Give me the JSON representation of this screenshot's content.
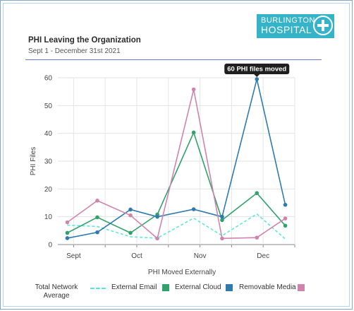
{
  "header": {
    "title": "PHI Leaving the Organization",
    "subtitle": "Sept 1 - December 31st 2021"
  },
  "logo": {
    "line1": "BURLINGTON",
    "line2": "HOSPITAL",
    "icon": "medical-cross-icon",
    "color": "#35b3c9"
  },
  "chart_data": {
    "type": "line",
    "xlabel": "PHI Moved Externally",
    "ylabel": "PHI Files",
    "ylim": [
      0,
      60
    ],
    "yticks": [
      0,
      10,
      20,
      30,
      40,
      50,
      60
    ],
    "x_tick_labels": [
      "Sept",
      "Oct",
      "Nov",
      "Dec"
    ],
    "x_tick_positions": [
      1,
      3,
      5,
      7
    ],
    "x": [
      0.8,
      1.75,
      2.8,
      3.65,
      4.8,
      5.7,
      6.8,
      7.7
    ],
    "xlim": [
      0.5,
      8.0
    ],
    "grid": true,
    "series": [
      {
        "name": "Total Network Average",
        "color": "#5ce8d9",
        "style": "dashed",
        "values": [
          7,
          6.5,
          2.8,
          2.3,
          9.5,
          3.2,
          11,
          2
        ]
      },
      {
        "name": "External Email",
        "color": "#2fa36b",
        "style": "solid",
        "values": [
          4.2,
          9.8,
          4.2,
          10.8,
          40.3,
          8.8,
          18.5,
          6.8
        ]
      },
      {
        "name": "External Cloud",
        "color": "#2f7bad",
        "style": "solid",
        "values": [
          2.3,
          4.4,
          12.6,
          10,
          12.7,
          10,
          59.5,
          14.3
        ]
      },
      {
        "name": "Removable Media",
        "color": "#d084ad",
        "style": "solid",
        "values": [
          8,
          15.8,
          10.5,
          2.2,
          55.8,
          2.2,
          2.5,
          9.4
        ]
      }
    ],
    "annotation": {
      "text": "60 PHI files moved",
      "series": "External Cloud",
      "point_index": 6
    },
    "legend": {
      "placement": "bottom",
      "items": [
        {
          "label": "Total Network Average",
          "swatch": "dashed",
          "color": "#5ce8d9"
        },
        {
          "label": "External Email",
          "swatch": "square",
          "color": "#2fa36b"
        },
        {
          "label": "External Cloud",
          "swatch": "square",
          "color": "#2f7bad"
        },
        {
          "label": "Removable Media",
          "swatch": "square",
          "color": "#d084ad"
        }
      ]
    }
  }
}
